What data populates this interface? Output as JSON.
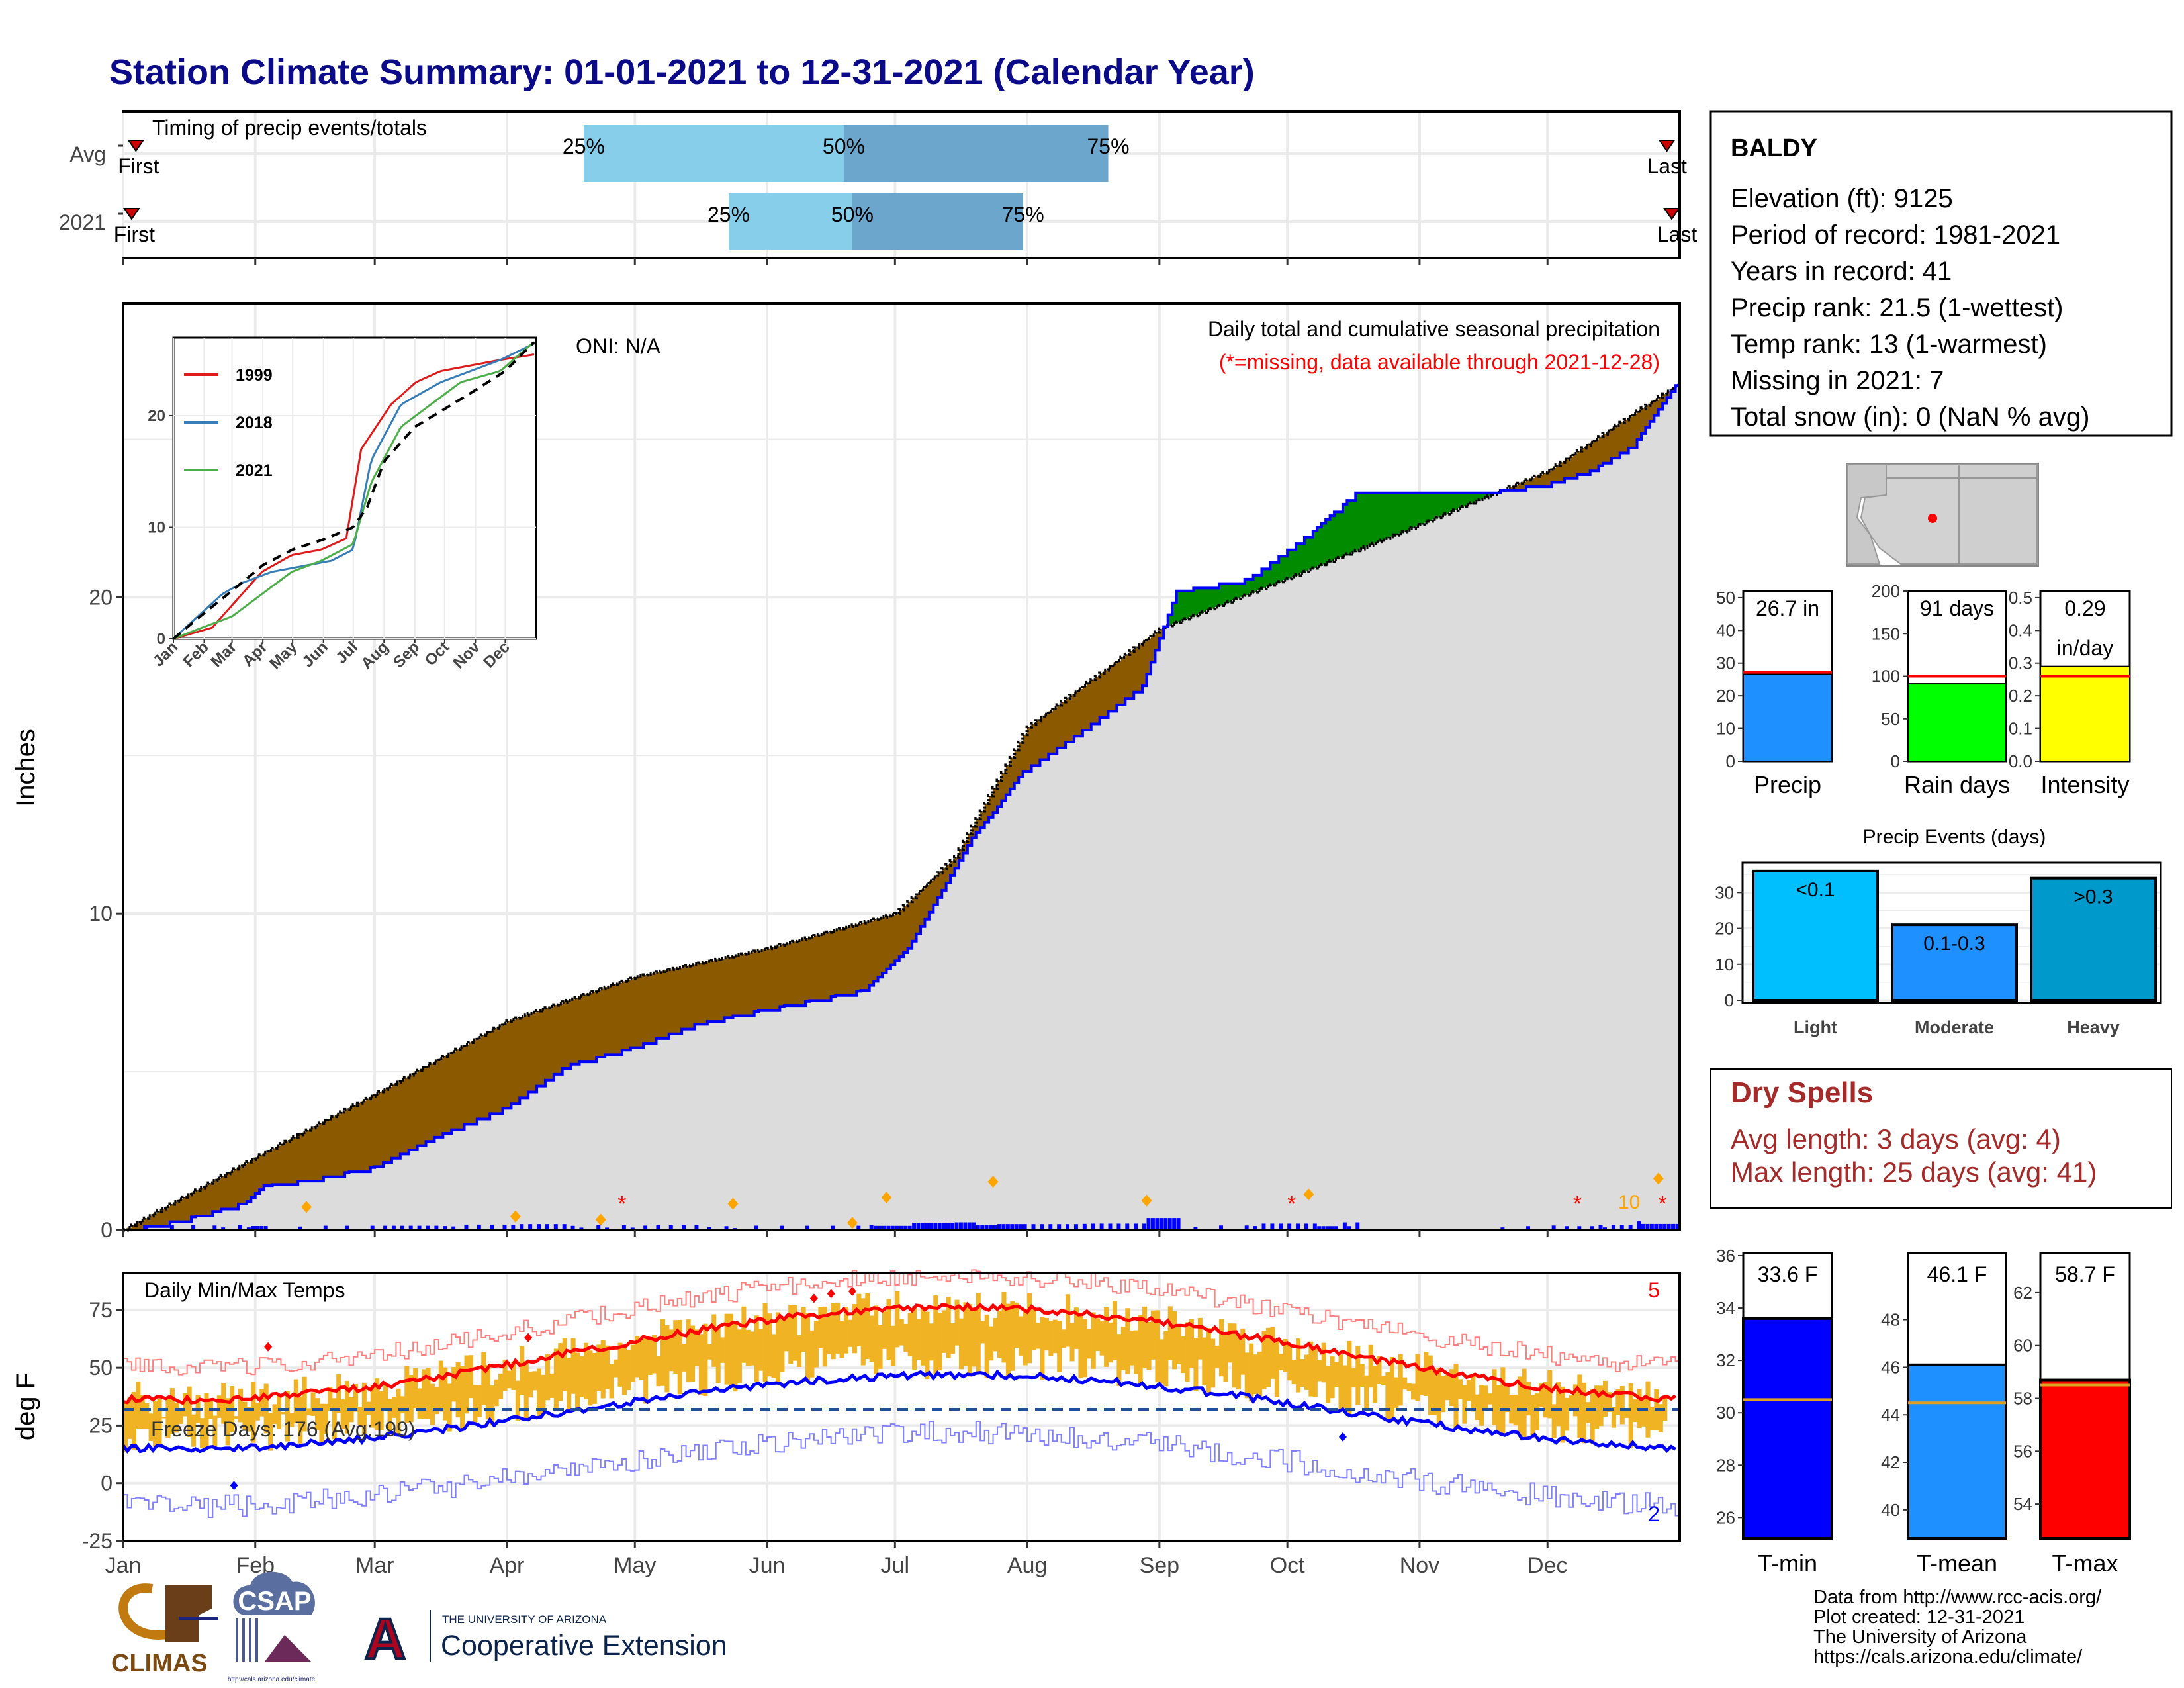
{
  "title": "Station Climate Summary: 01-01-2021 to 12-31-2021 (Calendar Year)",
  "timing_panel": {
    "title": "Timing of precip events/totals",
    "rows": [
      {
        "label": "Avg",
        "first_label": "First",
        "last_label": "Last",
        "p25_label": "25%",
        "p50_label": "50%",
        "p75_label": "75%",
        "p25_doy": 109,
        "p50_doy": 170,
        "p75_doy": 232,
        "first_doy": 4,
        "last_doy": 363
      },
      {
        "label": "2021",
        "first_label": "First",
        "last_label": "Last",
        "p25_label": "25%",
        "p50_label": "50%",
        "p75_label": "75%",
        "p25_doy": 143,
        "p50_doy": 172,
        "p75_doy": 212,
        "first_doy": 3,
        "last_doy": 367
      }
    ],
    "colors": {
      "outer": "#87ceeb",
      "inner": "#6ca6cd",
      "marker": "#cc0000"
    }
  },
  "precip_panel": {
    "ylabel": "Inches",
    "yticks": [
      0,
      10,
      20
    ],
    "ylim": [
      0,
      29.3
    ],
    "label_right_1": "Daily total and cumulative seasonal precipitation",
    "label_right_2": "(*=missing, data available through 2021-12-28)",
    "oni_label": "ONI: N/A",
    "marker_count_label": "10",
    "colors": {
      "deficit": "#8b5a00",
      "surplus": "#008b00",
      "fill": "#dcdcdc",
      "obs_line": "#0000ff",
      "avg_line": "#000000"
    }
  },
  "inset": {
    "yticks": [
      0,
      10,
      20
    ],
    "months": [
      "Jan",
      "Feb",
      "Mar",
      "Apr",
      "May",
      "Jun",
      "Jul",
      "Aug",
      "Sep",
      "Oct",
      "Nov",
      "Dec"
    ],
    "legend": [
      {
        "name": "1999",
        "color": "#dd1c1c"
      },
      {
        "name": "2018",
        "color": "#377eb8"
      },
      {
        "name": "2021",
        "color": "#4daf4a"
      }
    ]
  },
  "temp_panel": {
    "title": "Daily Min/Max Temps",
    "ylabel": "deg F",
    "yticks": [
      -25,
      0,
      25,
      50,
      75
    ],
    "ylim": [
      -25,
      91
    ],
    "freeze_label": "Freeze Days: 176 (Avg:199)",
    "record_high_count": "5",
    "record_low_count": "2",
    "freeze_line": 32,
    "colors": {
      "bars": "#f0b323",
      "avg_max": "#ff0000",
      "avg_min": "#0000ff",
      "rec_max": "#ff7f7f",
      "rec_min": "#7f7fff",
      "freeze": "#1f4e9a"
    }
  },
  "months": [
    "Jan",
    "Feb",
    "Mar",
    "Apr",
    "May",
    "Jun",
    "Jul",
    "Aug",
    "Sep",
    "Oct",
    "Nov",
    "Dec"
  ],
  "info_box": {
    "station": "BALDY",
    "lines": [
      "Elevation (ft): 9125",
      "Period of record: 1981-2021",
      "Years in record: 41",
      "Precip rank: 21.5 (1-wettest)",
      "Temp rank: 13 (1-warmest)",
      "Missing in 2021: 7",
      "Total snow (in): 0 (NaN % avg)"
    ]
  },
  "mini_bars": [
    {
      "label": "Precip",
      "value_label": "26.7 in",
      "value": 26.7,
      "avg": 27.2,
      "ymax": 52,
      "yticks": [
        0,
        10,
        20,
        30,
        40,
        50
      ],
      "color": "#1e90ff"
    },
    {
      "label": "Rain days",
      "value_label": "91 days",
      "value": 91,
      "avg": 100,
      "ymax": 200,
      "yticks": [
        0,
        50,
        100,
        150,
        200
      ],
      "color": "#00ff00"
    },
    {
      "label": "Intensity",
      "value_label": "0.29",
      "value_label_2": "in/day",
      "value": 0.29,
      "avg": 0.26,
      "ymax": 0.52,
      "yticks": [
        0.0,
        0.1,
        0.2,
        0.3,
        0.4,
        0.5
      ],
      "tick_format": "0.1",
      "color": "#ffff00"
    }
  ],
  "events": {
    "title": "Precip Events (days)",
    "categories": [
      "Light",
      "Moderate",
      "Heavy"
    ],
    "bar_labels": [
      "<0.1",
      "0.1-0.3",
      ">0.3"
    ],
    "values": [
      36,
      21,
      34
    ],
    "ymax": 38,
    "yticks": [
      0,
      10,
      20,
      30
    ],
    "colors": [
      "#00bfff",
      "#1e90ff",
      "#0099cc"
    ]
  },
  "dry_spells": {
    "title": "Dry Spells",
    "line1": "Avg length: 3 days (avg: 4)",
    "line2": "Max length: 25 days (avg: 41)"
  },
  "temp_bars": [
    {
      "label": "T-min",
      "value_label": "33.6 F",
      "value": 33.6,
      "avg": 30.5,
      "ymin": 25.2,
      "ymax": 36.1,
      "yticks": [
        26,
        28,
        30,
        32,
        34,
        36
      ],
      "color": "#0000ff"
    },
    {
      "label": "T-mean",
      "value_label": "46.1 F",
      "value": 46.1,
      "avg": 44.5,
      "ymin": 38.8,
      "ymax": 50.8,
      "yticks": [
        40,
        42,
        44,
        46,
        48
      ],
      "color": "#1e90ff"
    },
    {
      "label": "T-max",
      "value_label": "58.7 F",
      "value": 58.7,
      "avg": 58.5,
      "ymin": 52.7,
      "ymax": 63.5,
      "yticks": [
        54,
        56,
        58,
        60,
        62
      ],
      "color": "#ff0000"
    }
  ],
  "footer": {
    "credit_lines": [
      "Data from http://www.rcc-acis.org/",
      "Plot created: 12-31-2021",
      "The University of Arizona",
      "https://cals.arizona.edu/climate/"
    ],
    "logo_climas": "CLIMAS",
    "logo_csap": "CSAP",
    "logo_csap_url": "http://cals.arizona.edu/climate",
    "ua_small": "THE UNIVERSITY OF ARIZONA",
    "ua_big": "Cooperative Extension",
    "ua_letter": "A"
  }
}
